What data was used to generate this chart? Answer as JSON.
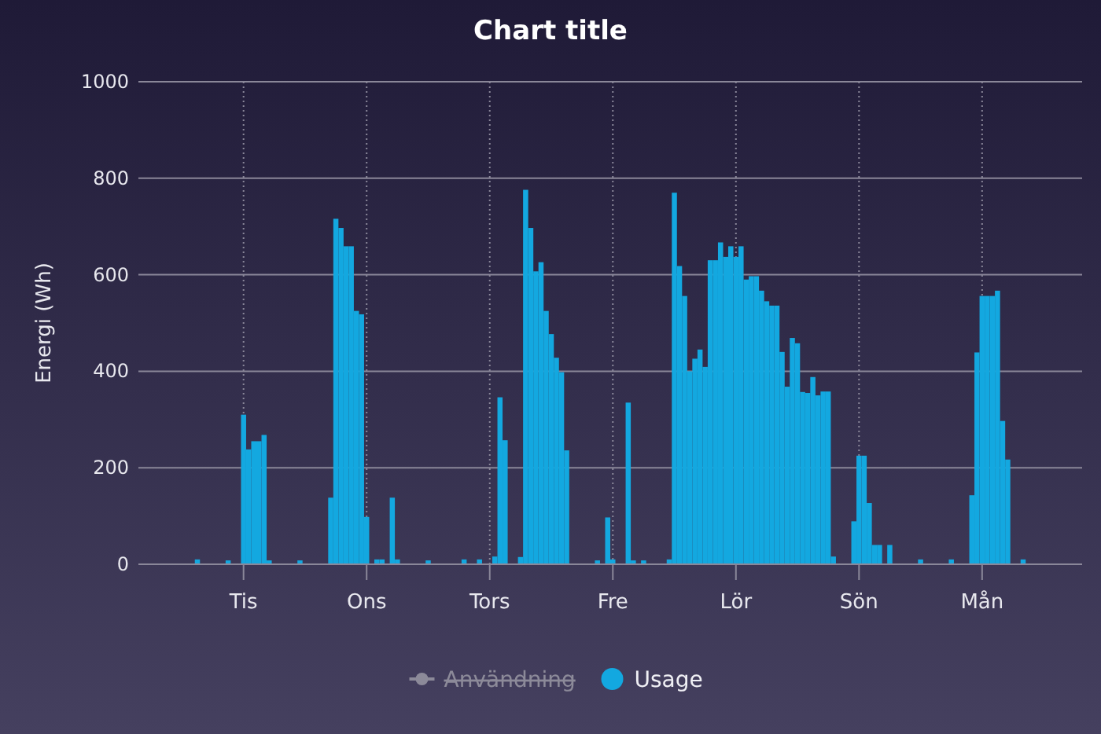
{
  "chart_data": {
    "type": "bar",
    "title": "Chart title",
    "ylabel": "Energi (Wh)",
    "ylim": [
      0,
      1000
    ],
    "yticks": [
      0,
      200,
      400,
      600,
      800,
      1000
    ],
    "grid": true,
    "legend": "bottom",
    "categories": [
      null,
      null,
      null,
      null,
      null,
      null,
      null,
      null,
      null,
      null,
      null,
      null,
      null,
      null,
      null,
      null,
      null,
      null,
      null,
      null,
      "Tis",
      null,
      null,
      null,
      null,
      null,
      null,
      null,
      null,
      null,
      null,
      null,
      null,
      null,
      null,
      null,
      null,
      null,
      null,
      null,
      null,
      null,
      null,
      null,
      "Ons",
      null,
      null,
      null,
      null,
      null,
      null,
      null,
      null,
      null,
      null,
      null,
      null,
      null,
      null,
      null,
      null,
      null,
      null,
      null,
      null,
      null,
      null,
      null,
      "Tors",
      null,
      null,
      null,
      null,
      null,
      null,
      null,
      null,
      null,
      null,
      null,
      null,
      null,
      null,
      null,
      null,
      null,
      null,
      null,
      null,
      null,
      null,
      null,
      "Fre",
      null,
      null,
      null,
      null,
      null,
      null,
      null,
      null,
      null,
      null,
      null,
      null,
      null,
      null,
      null,
      null,
      null,
      null,
      null,
      null,
      null,
      null,
      null,
      "Lör",
      null,
      null,
      null,
      null,
      null,
      null,
      null,
      null,
      null,
      null,
      null,
      null,
      null,
      null,
      null,
      null,
      null,
      null,
      null,
      null,
      null,
      null,
      null,
      "Sön",
      null,
      null,
      null,
      null,
      null,
      null,
      null,
      null,
      null,
      null,
      null,
      null,
      null,
      null,
      null,
      null,
      null,
      null,
      null,
      null,
      null,
      null,
      null,
      "Mån",
      null,
      null,
      null,
      null,
      null,
      null,
      null,
      null,
      null,
      null,
      null,
      null,
      null,
      null,
      null,
      null,
      null,
      null,
      null
    ],
    "series": [
      {
        "name": "Användning",
        "type": "line",
        "color": "#8c8a99",
        "marker": "circle",
        "values": [
          null,
          null,
          null,
          null,
          null,
          null,
          null,
          null,
          null,
          null,
          null,
          null,
          null,
          null,
          null,
          null,
          null,
          null,
          null,
          null,
          null,
          null,
          null,
          null,
          null,
          null,
          null,
          null,
          null,
          null,
          null,
          null,
          null,
          null,
          null,
          null,
          null,
          null,
          null,
          null,
          null,
          null,
          null,
          null,
          null,
          null,
          null,
          null,
          null,
          null,
          null,
          null,
          null,
          null,
          null,
          null,
          null,
          null,
          null,
          null,
          null,
          null,
          null,
          null,
          null,
          null,
          null,
          null,
          null,
          null,
          null,
          null,
          null,
          null,
          null,
          null,
          null,
          null,
          null,
          null,
          null,
          null,
          null,
          null,
          null,
          null,
          null,
          null,
          null,
          null,
          null,
          null,
          null,
          null,
          null,
          null,
          null,
          null,
          null,
          null,
          null,
          null,
          null,
          null,
          null,
          null,
          null,
          null,
          null,
          null,
          null,
          null,
          null,
          null,
          null,
          null,
          null,
          null,
          null,
          null,
          null,
          null,
          null,
          null,
          null,
          null,
          null,
          null,
          null,
          null,
          null,
          null,
          null,
          null,
          null,
          null,
          null,
          null,
          null,
          null,
          null,
          null,
          null,
          null,
          null,
          null,
          null,
          null,
          null,
          null,
          null,
          null,
          null,
          null,
          null,
          null,
          null,
          null,
          null,
          null,
          null,
          null,
          null,
          null,
          null,
          null,
          null,
          null,
          null,
          null,
          null,
          null,
          null,
          null,
          null,
          null,
          null,
          null,
          null,
          null,
          null,
          null,
          null,
          null
        ]
      },
      {
        "name": "Usage",
        "color": "#13a8e0",
        "values": [
          null,
          null,
          null,
          null,
          null,
          null,
          null,
          null,
          null,
          null,
          null,
          10,
          null,
          null,
          null,
          null,
          null,
          8,
          null,
          null,
          310,
          238,
          255,
          255,
          268,
          8,
          null,
          null,
          null,
          null,
          null,
          8,
          null,
          null,
          null,
          null,
          null,
          138,
          716,
          697,
          659,
          659,
          525,
          518,
          98,
          null,
          10,
          10,
          null,
          138,
          10,
          null,
          null,
          null,
          null,
          null,
          8,
          null,
          null,
          null,
          null,
          null,
          null,
          10,
          null,
          null,
          10,
          null,
          null,
          16,
          346,
          257,
          null,
          null,
          15,
          776,
          697,
          607,
          626,
          525,
          477,
          428,
          398,
          236,
          null,
          null,
          null,
          null,
          null,
          8,
          null,
          97,
          10,
          null,
          null,
          335,
          8,
          null,
          8,
          null,
          null,
          null,
          null,
          10,
          770,
          618,
          556,
          400,
          426,
          445,
          409,
          630,
          630,
          667,
          637,
          659,
          637,
          659,
          590,
          597,
          597,
          567,
          545,
          536,
          536,
          440,
          368,
          469,
          458,
          357,
          355,
          388,
          350,
          358,
          358,
          16,
          null,
          null,
          null,
          89,
          225,
          225,
          127,
          40,
          40,
          null,
          40,
          null,
          null,
          null,
          null,
          null,
          10,
          null,
          null,
          null,
          null,
          null,
          10,
          null,
          null,
          null,
          143,
          439,
          556,
          556,
          556,
          567,
          297,
          217,
          null,
          null,
          10,
          null,
          null,
          null,
          null,
          null,
          null,
          null,
          null,
          null,
          null,
          null
        ]
      }
    ]
  }
}
